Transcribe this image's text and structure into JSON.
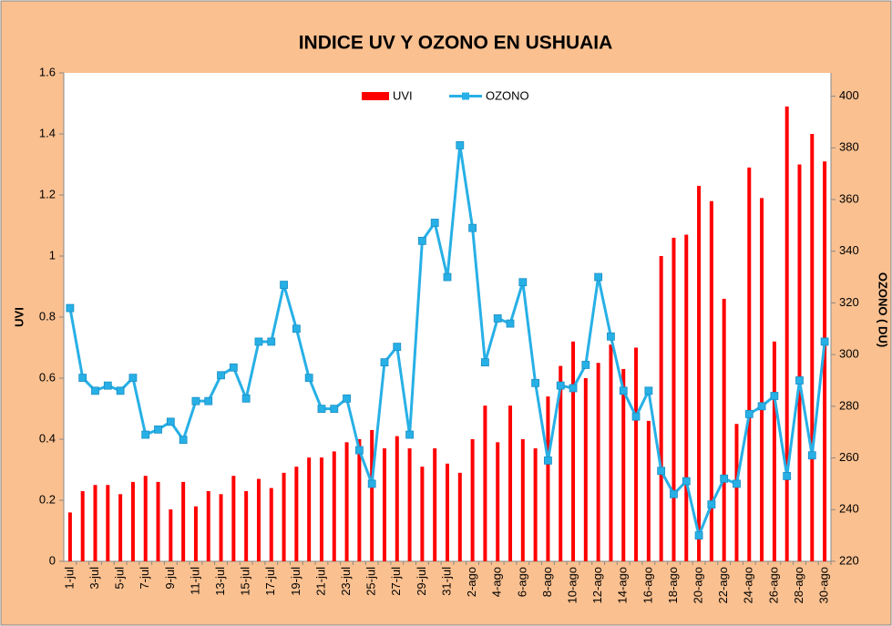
{
  "chart_data": {
    "type": "bar_line",
    "title": "INDICE UV Y OZONO EN USHUAIA",
    "y_label": "UVI",
    "y2_label": "OZONO ( DU)",
    "categories": [
      "1-jul",
      null,
      "3-jul",
      null,
      "5-jul",
      null,
      "7-jul",
      null,
      "9-jul",
      null,
      "11-jul",
      null,
      "13-jul",
      null,
      "15-jul",
      null,
      "17-jul",
      null,
      "19-jul",
      null,
      "21-jul",
      null,
      "23-jul",
      null,
      "25-jul",
      null,
      "27-jul",
      null,
      "29-jul",
      null,
      "31-jul",
      null,
      "2-ago",
      null,
      "4-ago",
      null,
      "6-ago",
      null,
      "8-ago",
      null,
      "10-ago",
      null,
      "12-ago",
      null,
      "14-ago",
      null,
      "16-ago",
      null,
      "18-ago",
      null,
      "20-ago",
      null,
      "22-ago",
      null,
      "24-ago",
      null,
      "26-ago",
      null,
      "28-ago",
      null,
      "30-ago"
    ],
    "series": [
      {
        "name": "UVI",
        "color": "#ff0000",
        "kind": "bar",
        "values": [
          0.16,
          0.23,
          0.25,
          0.25,
          0.22,
          0.26,
          0.28,
          0.26,
          0.17,
          0.26,
          0.18,
          0.23,
          0.22,
          0.28,
          0.23,
          0.27,
          0.24,
          0.29,
          0.31,
          0.34,
          0.34,
          0.36,
          0.39,
          0.4,
          0.43,
          0.37,
          0.41,
          0.37,
          0.31,
          0.37,
          0.32,
          0.29,
          0.4,
          0.51,
          0.39,
          0.51,
          0.4,
          0.37,
          0.54,
          0.64,
          0.72,
          0.6,
          0.65,
          0.71,
          0.63,
          0.7,
          0.46,
          1.0,
          1.06,
          1.07,
          1.23,
          1.18,
          0.86,
          0.45,
          1.29,
          1.19,
          0.72,
          1.49,
          1.3,
          1.4,
          1.31
        ]
      },
      {
        "name": "OZONO",
        "color": "#27b0e6",
        "kind": "line",
        "axis": "y2",
        "values": [
          318,
          291,
          286,
          288,
          286,
          291,
          269,
          271,
          274,
          267,
          282,
          282,
          292,
          295,
          283,
          305,
          305,
          327,
          310,
          291,
          279,
          279,
          283,
          263,
          250,
          297,
          303,
          269,
          344,
          351,
          330,
          381,
          349,
          297,
          314,
          312,
          328,
          289,
          259,
          288,
          287,
          296,
          330,
          307,
          286,
          276,
          286,
          255,
          246,
          251,
          230,
          242,
          252,
          250,
          277,
          280,
          284,
          253,
          290,
          261,
          305
        ]
      }
    ],
    "ylim": [
      0,
      1.6
    ],
    "yticks": [
      0,
      0.2,
      0.4,
      0.6,
      0.8,
      1,
      1.2,
      1.4,
      1.6
    ],
    "y2lim": [
      220,
      409
    ],
    "y2ticks": [
      220,
      240,
      260,
      280,
      300,
      320,
      340,
      360,
      380,
      400
    ],
    "legend": "top"
  }
}
